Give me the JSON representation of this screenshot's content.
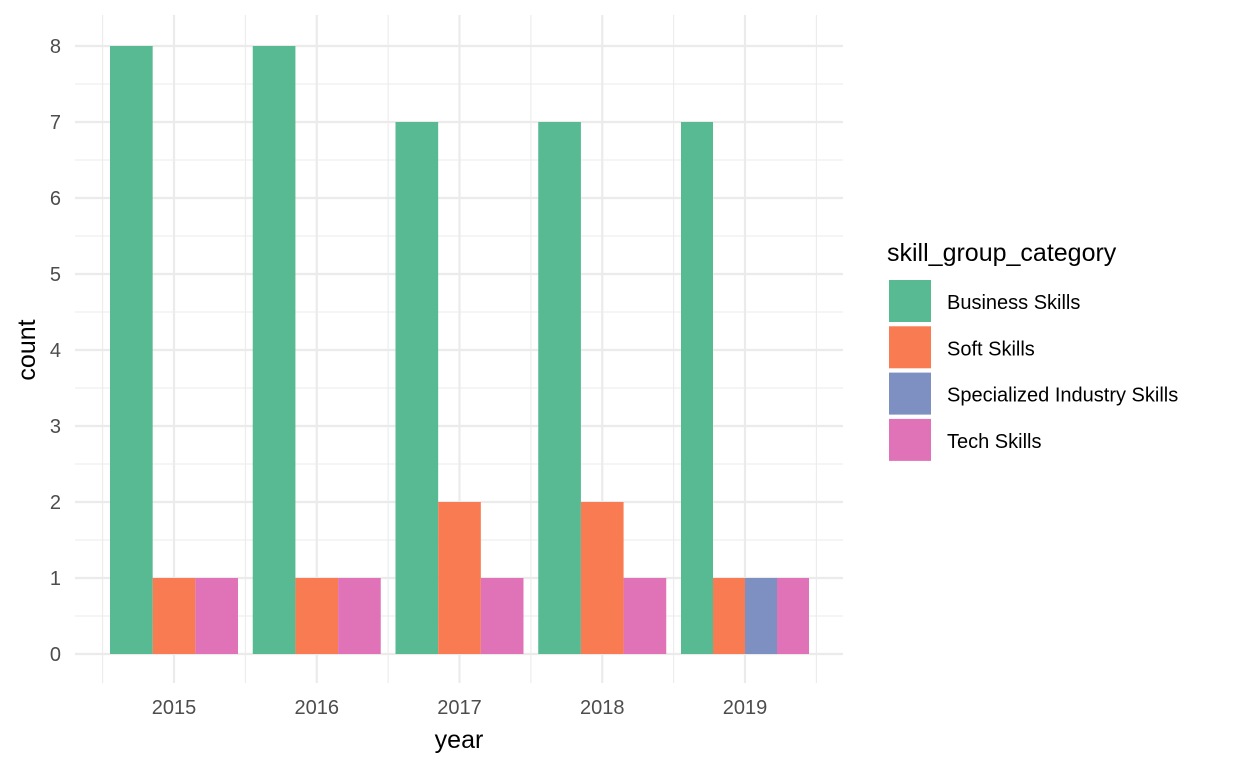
{
  "chart_data": {
    "type": "bar",
    "xlabel": "year",
    "ylabel": "count",
    "categories": [
      "2015",
      "2016",
      "2017",
      "2018",
      "2019"
    ],
    "ylim": [
      0,
      8
    ],
    "yticks": [
      0,
      1,
      2,
      3,
      4,
      5,
      6,
      7,
      8
    ],
    "grid": true,
    "legend": {
      "title": "skill_group_category",
      "position": "right"
    },
    "series": [
      {
        "name": "Business Skills",
        "color": "#57BA93",
        "values": [
          8,
          8,
          7,
          7,
          7
        ]
      },
      {
        "name": "Soft Skills",
        "color": "#F97B52",
        "values": [
          1,
          1,
          2,
          2,
          1
        ]
      },
      {
        "name": "Specialized Industry Skills",
        "color": "#7E8FC1",
        "values": [
          null,
          null,
          null,
          null,
          1
        ]
      },
      {
        "name": "Tech Skills",
        "color": "#E072B7",
        "values": [
          1,
          1,
          1,
          1,
          1
        ]
      }
    ]
  }
}
